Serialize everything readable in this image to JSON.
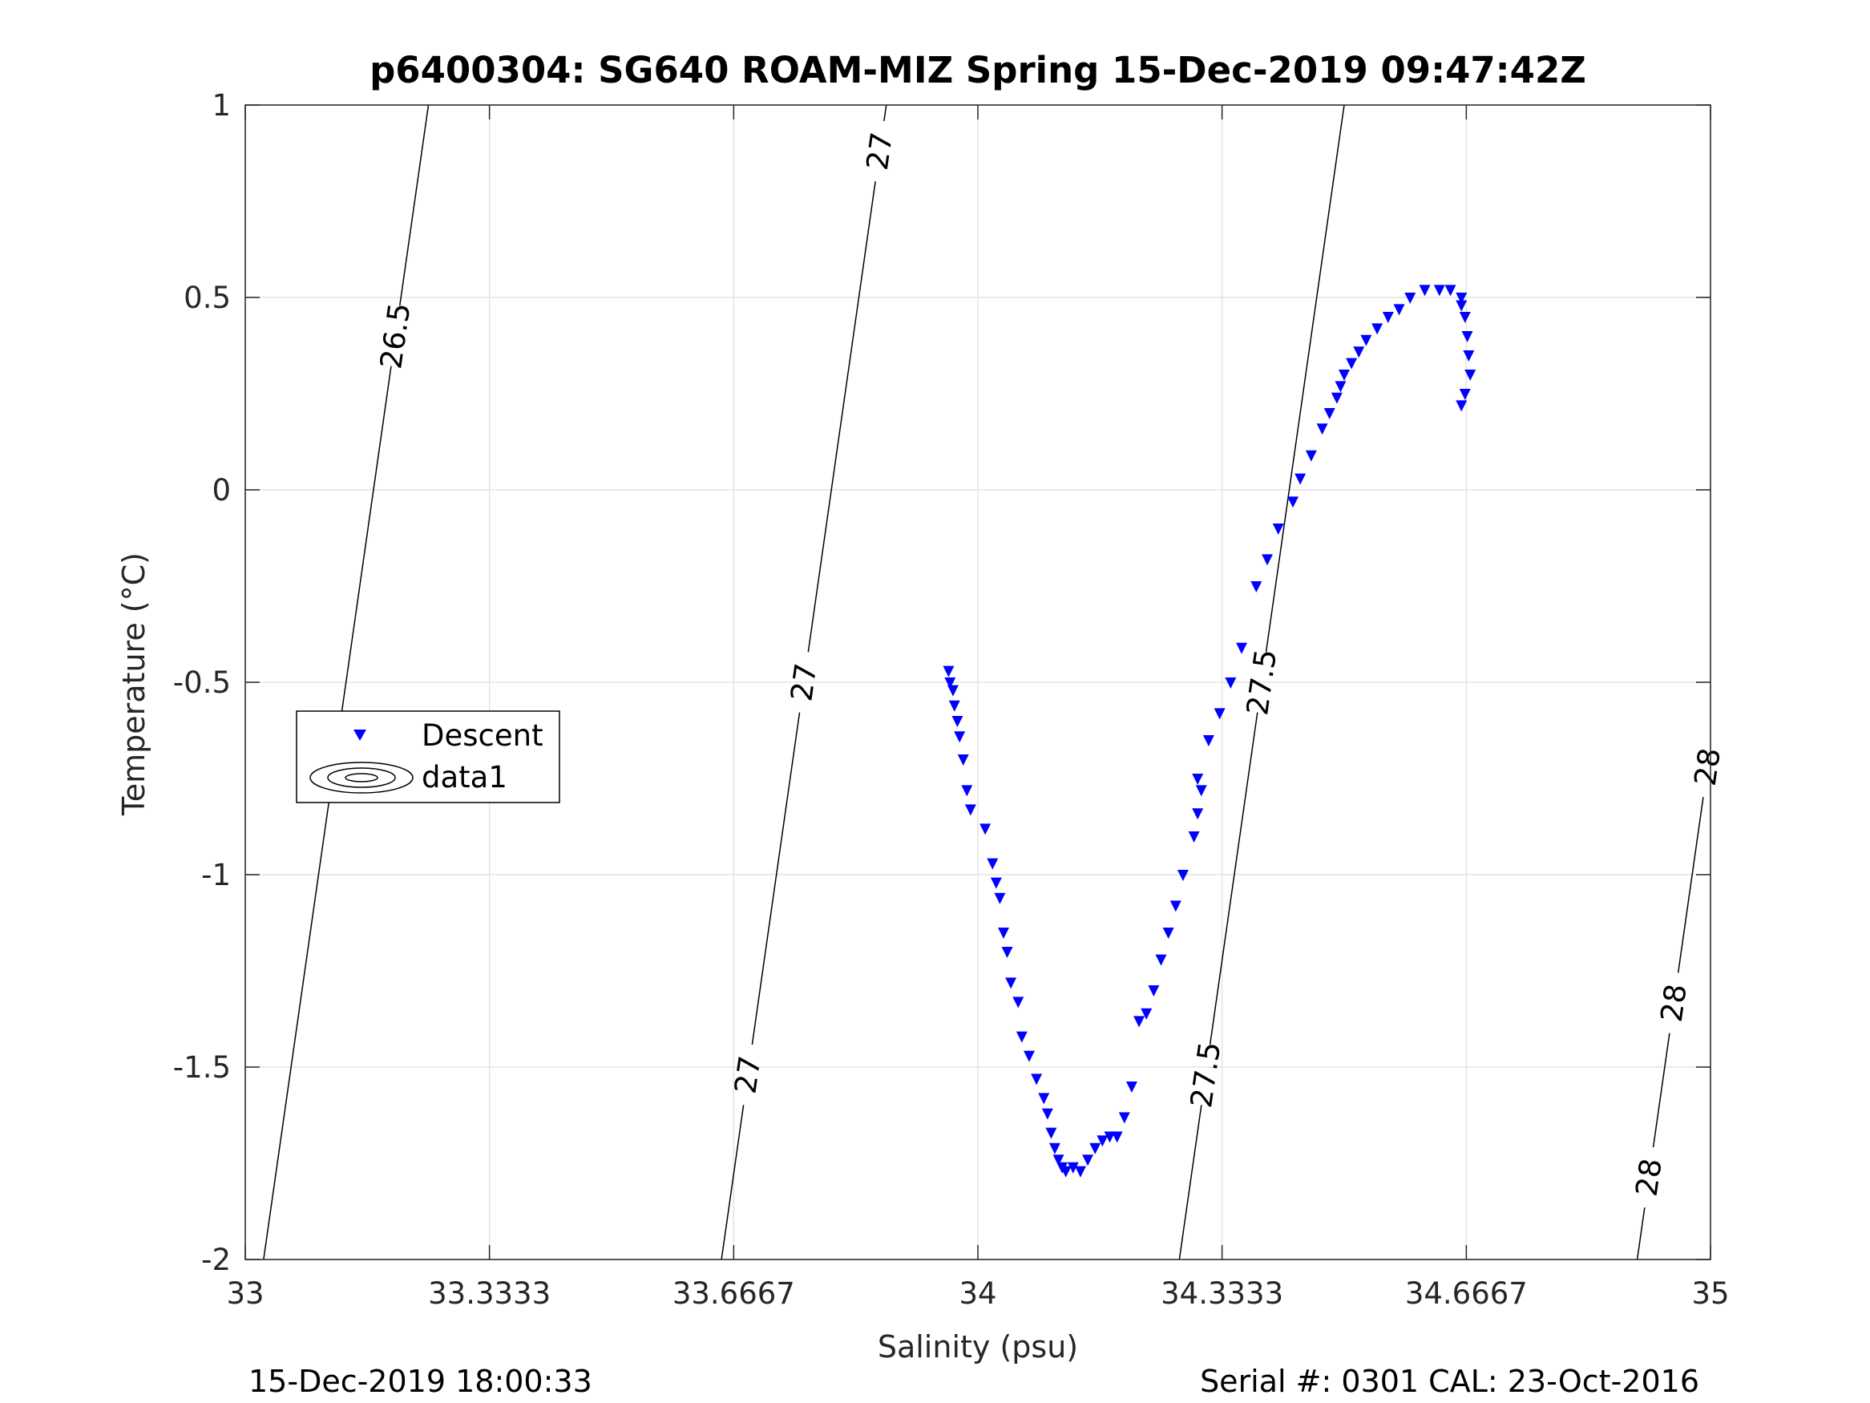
{
  "chart_data": {
    "type": "scatter",
    "title": "p6400304: SG640 ROAM-MIZ Spring 15-Dec-2019 09:47:42Z",
    "xlabel": "Salinity (psu)",
    "ylabel": "Temperature (°C)",
    "xlim": [
      33,
      35
    ],
    "ylim": [
      -2,
      1
    ],
    "grid": true,
    "legend_position": "left-middle",
    "x_ticks": [
      33,
      33.3333,
      33.6667,
      34,
      34.3333,
      34.6667,
      35
    ],
    "x_tick_labels": [
      "33",
      "33.3333",
      "33.6667",
      "34",
      "34.3333",
      "34.6667",
      "35"
    ],
    "y_ticks": [
      -2,
      -1.5,
      -1,
      -0.5,
      0,
      0.5,
      1
    ],
    "y_tick_labels": [
      "-2",
      "-1.5",
      "-1",
      "-0.5",
      "0",
      "0.5",
      "1"
    ],
    "colors": {
      "descent": "#0000ff",
      "contour": "#000000",
      "grid": "#e3e3e3",
      "axis": "#262626"
    },
    "series": [
      {
        "name": "Descent",
        "marker": "triangle-down",
        "x": [
          33.96,
          33.962,
          33.966,
          33.968,
          33.972,
          33.975,
          33.98,
          33.985,
          33.99,
          34.01,
          34.02,
          34.025,
          34.03,
          34.035,
          34.04,
          34.045,
          34.055,
          34.06,
          34.07,
          34.08,
          34.09,
          34.095,
          34.1,
          34.105,
          34.11,
          34.115,
          34.12,
          34.13,
          34.14,
          34.15,
          34.16,
          34.17,
          34.18,
          34.19,
          34.2,
          34.21,
          34.22,
          34.23,
          34.24,
          34.25,
          34.26,
          34.27,
          34.28,
          34.295,
          34.3,
          34.305,
          34.3,
          34.315,
          34.33,
          34.345,
          34.36,
          34.38,
          34.395,
          34.41,
          34.43,
          34.44,
          34.455,
          34.47,
          34.48,
          34.49,
          34.495,
          34.5,
          34.51,
          34.52,
          34.53,
          34.545,
          34.56,
          34.575,
          34.59,
          34.61,
          34.63,
          34.645,
          34.66,
          34.665,
          34.668,
          34.67,
          34.672,
          34.665,
          34.66,
          34.66
        ],
        "y": [
          -0.47,
          -0.5,
          -0.52,
          -0.56,
          -0.6,
          -0.64,
          -0.7,
          -0.78,
          -0.83,
          -0.88,
          -0.97,
          -1.02,
          -1.06,
          -1.15,
          -1.2,
          -1.28,
          -1.33,
          -1.42,
          -1.47,
          -1.53,
          -1.58,
          -1.62,
          -1.67,
          -1.71,
          -1.74,
          -1.76,
          -1.77,
          -1.76,
          -1.77,
          -1.74,
          -1.71,
          -1.69,
          -1.68,
          -1.68,
          -1.63,
          -1.55,
          -1.38,
          -1.36,
          -1.3,
          -1.22,
          -1.15,
          -1.08,
          -1.0,
          -0.9,
          -0.84,
          -0.78,
          -0.75,
          -0.65,
          -0.58,
          -0.5,
          -0.41,
          -0.25,
          -0.18,
          -0.1,
          -0.03,
          0.03,
          0.09,
          0.16,
          0.2,
          0.24,
          0.27,
          0.3,
          0.33,
          0.36,
          0.39,
          0.42,
          0.45,
          0.47,
          0.5,
          0.52,
          0.52,
          0.52,
          0.5,
          0.45,
          0.4,
          0.35,
          0.3,
          0.25,
          0.22,
          0.48
        ]
      },
      {
        "name": "data1",
        "type": "contour",
        "levels": [
          {
            "sigma": 26.5,
            "labels": [
              "26.5"
            ]
          },
          {
            "sigma": 27,
            "labels": [
              "27",
              "27",
              "27"
            ]
          },
          {
            "sigma": 27.5,
            "labels": [
              "27.5",
              "27.5"
            ]
          },
          {
            "sigma": 28,
            "labels": [
              "28",
              "28",
              "28"
            ]
          }
        ]
      }
    ]
  },
  "footer": {
    "left": "15-Dec-2019 18:00:33",
    "right": "Serial #: 0301  CAL: 23-Oct-2016"
  }
}
